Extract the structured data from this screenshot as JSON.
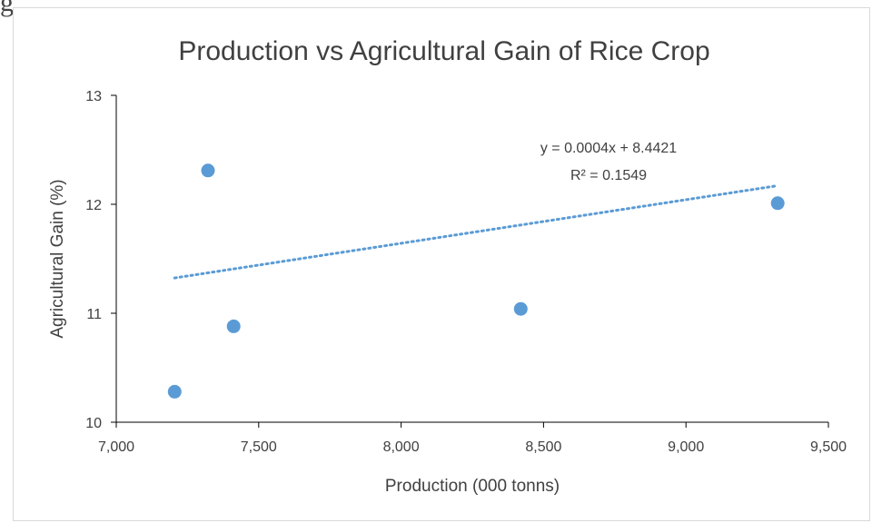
{
  "header_fragment": "g",
  "chart_data": {
    "type": "scatter",
    "title": "Production vs Agricultural Gain of Rice Crop",
    "xlabel": "Production (000 tonns)",
    "ylabel": "Agricultural Gain (%)",
    "xlim": [
      7000,
      9500
    ],
    "ylim": [
      10,
      13
    ],
    "x_ticks": [
      7000,
      7500,
      8000,
      8500,
      9000,
      9500
    ],
    "x_tick_labels": [
      "7,000",
      "7,500",
      "8,000",
      "8,500",
      "9,000",
      "9,500"
    ],
    "y_ticks": [
      10,
      11,
      12,
      13
    ],
    "y_tick_labels": [
      "10",
      "11",
      "12",
      "13"
    ],
    "points": [
      {
        "x": 7205,
        "y": 10.28
      },
      {
        "x": 7322,
        "y": 12.31
      },
      {
        "x": 7412,
        "y": 10.88
      },
      {
        "x": 8420,
        "y": 11.04
      },
      {
        "x": 9322,
        "y": 12.01
      }
    ],
    "trendline": {
      "type": "linear",
      "slope": 0.0004,
      "intercept": 8.4421,
      "x_range": [
        7205,
        9322
      ],
      "equation_label": "y = 0.0004x + 8.4421",
      "r2_label": "R² = 0.1549"
    },
    "marker_color": "#5b9bd5",
    "trendline_color": "#5b9bd5",
    "grid": false,
    "legend": "none"
  }
}
